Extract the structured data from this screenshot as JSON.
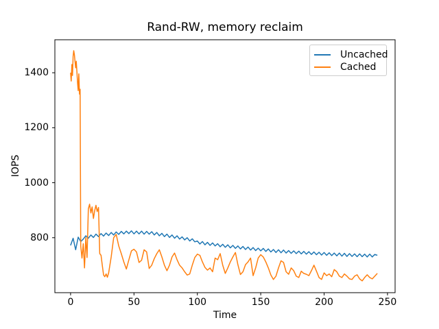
{
  "title": "Rand-RW, memory reclaim",
  "chart_data": {
    "type": "line",
    "title": "Rand-RW, memory reclaim",
    "xlabel": "Time",
    "ylabel": "IOPS",
    "xlim": [
      -12.4,
      256
    ],
    "ylim": [
      600,
      1520
    ],
    "xticks": [
      0,
      50,
      100,
      150,
      200,
      250
    ],
    "yticks": [
      800,
      1000,
      1200,
      1400
    ],
    "grid": false,
    "legend": {
      "position": "upper right",
      "entries": [
        "Uncached",
        "Cached"
      ],
      "border_color": "#cccccc"
    },
    "colors": {
      "axis": "#000000",
      "background": "#ffffff"
    },
    "series": [
      {
        "name": "Uncached",
        "color": "#1f77b4",
        "x": [
          0,
          2,
          4,
          6,
          8,
          10,
          12,
          14,
          16,
          18,
          20,
          22,
          24,
          26,
          28,
          30,
          32,
          34,
          36,
          38,
          40,
          42,
          44,
          46,
          48,
          50,
          52,
          54,
          56,
          58,
          60,
          62,
          64,
          66,
          68,
          70,
          72,
          74,
          76,
          78,
          80,
          82,
          84,
          86,
          88,
          90,
          92,
          94,
          96,
          98,
          100,
          102,
          104,
          106,
          108,
          110,
          112,
          114,
          116,
          118,
          120,
          122,
          124,
          126,
          128,
          130,
          132,
          134,
          136,
          138,
          140,
          142,
          144,
          146,
          148,
          150,
          152,
          154,
          156,
          158,
          160,
          162,
          164,
          166,
          168,
          170,
          172,
          174,
          176,
          178,
          180,
          182,
          184,
          186,
          188,
          190,
          192,
          194,
          196,
          198,
          200,
          202,
          204,
          206,
          208,
          210,
          212,
          214,
          216,
          218,
          220,
          222,
          224,
          226,
          228,
          230,
          232,
          234,
          236,
          238,
          240,
          242
        ],
        "y": [
          772,
          798,
          756,
          802,
          786,
          795,
          807,
          798,
          810,
          801,
          813,
          804,
          815,
          806,
          817,
          808,
          819,
          810,
          821,
          812,
          823,
          814,
          824,
          815,
          825,
          814,
          824,
          814,
          824,
          813,
          823,
          813,
          822,
          810,
          819,
          807,
          816,
          804,
          813,
          801,
          810,
          798,
          807,
          795,
          803,
          792,
          800,
          788,
          796,
          785,
          788,
          777,
          786,
          774,
          783,
          772,
          781,
          770,
          778,
          767,
          776,
          765,
          774,
          763,
          772,
          761,
          770,
          759,
          768,
          757,
          766,
          755,
          764,
          753,
          762,
          752,
          761,
          750,
          759,
          748,
          757,
          746,
          756,
          745,
          755,
          744,
          753,
          743,
          752,
          742,
          751,
          741,
          750,
          740,
          749,
          739,
          748,
          738,
          747,
          737,
          746,
          736,
          745,
          735,
          744,
          734,
          744,
          733,
          743,
          732,
          742,
          732,
          741,
          731,
          741,
          731,
          740,
          730,
          740,
          730,
          739,
          736
        ]
      },
      {
        "name": "Cached",
        "color": "#ff7f0e",
        "x": [
          0,
          0.5,
          1,
          1.5,
          2,
          2.5,
          3,
          3.5,
          4,
          4.5,
          5,
          5.5,
          6,
          6.5,
          7,
          7.5,
          8,
          9,
          10,
          11,
          12,
          13,
          14,
          15,
          16,
          17,
          18,
          19,
          20,
          21,
          22,
          23,
          24,
          25,
          26,
          27,
          28,
          29,
          30,
          32,
          34,
          36,
          38,
          40,
          42,
          44,
          46,
          48,
          50,
          52,
          54,
          56,
          58,
          60,
          62,
          64,
          66,
          68,
          70,
          72,
          74,
          76,
          78,
          80,
          82,
          84,
          86,
          88,
          90,
          92,
          94,
          96,
          98,
          100,
          102,
          104,
          106,
          108,
          110,
          112,
          114,
          116,
          118,
          120,
          122,
          124,
          126,
          128,
          130,
          132,
          134,
          136,
          138,
          140,
          142,
          144,
          146,
          148,
          150,
          152,
          154,
          156,
          158,
          160,
          162,
          164,
          166,
          168,
          170,
          172,
          174,
          176,
          178,
          180,
          182,
          184,
          186,
          188,
          190,
          192,
          194,
          196,
          198,
          200,
          202,
          204,
          206,
          208,
          210,
          212,
          214,
          216,
          218,
          220,
          222,
          224,
          226,
          228,
          230,
          232,
          234,
          236,
          238,
          240,
          242
        ],
        "y": [
          1400,
          1370,
          1430,
          1390,
          1460,
          1480,
          1465,
          1440,
          1418,
          1442,
          1400,
          1362,
          1335,
          1396,
          1322,
          1340,
          770,
          726,
          778,
          690,
          800,
          728,
          905,
          922,
          890,
          912,
          870,
          898,
          918,
          895,
          910,
          742,
          736,
          700,
          664,
          658,
          668,
          656,
          672,
          730,
          800,
          812,
          770,
          742,
          712,
          686,
          720,
          752,
          758,
          748,
          710,
          718,
          756,
          748,
          688,
          700,
          724,
          742,
          756,
          730,
          700,
          680,
          700,
          730,
          744,
          720,
          700,
          690,
          676,
          664,
          668,
          700,
          728,
          740,
          736,
          712,
          692,
          682,
          690,
          676,
          726,
          720,
          742,
          700,
          670,
          690,
          712,
          730,
          746,
          702,
          666,
          676,
          702,
          712,
          726,
          662,
          690,
          726,
          738,
          730,
          712,
          690,
          664,
          648,
          660,
          690,
          716,
          710,
          676,
          667,
          690,
          680,
          660,
          655,
          678,
          670,
          667,
          662,
          680,
          700,
          678,
          655,
          648,
          672,
          662,
          668,
          658,
          684,
          676,
          660,
          655,
          668,
          660,
          650,
          648,
          660,
          665,
          650,
          643,
          655,
          665,
          655,
          650,
          660,
          670
        ]
      }
    ],
    "layout": {
      "axes_rect": [
        80,
        58,
        496,
        369
      ],
      "tick_length": 4,
      "line_width": 1.5
    }
  }
}
